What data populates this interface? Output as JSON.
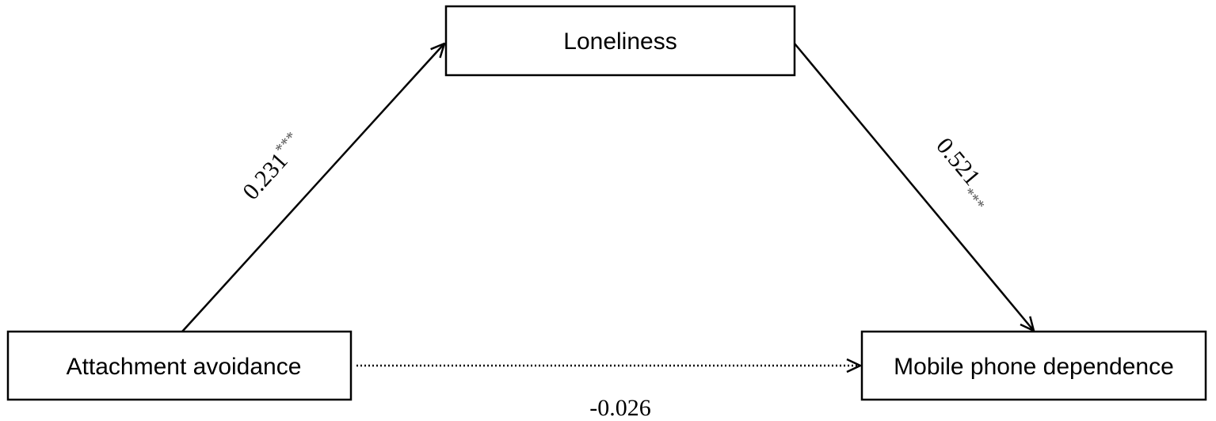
{
  "nodes": {
    "mediator": "Loneliness",
    "predictor": "Attachment avoidance",
    "outcome": "Mobile phone dependence"
  },
  "paths": {
    "a": {
      "coefficient": "0.231",
      "significance": "***"
    },
    "b": {
      "coefficient": "0.521",
      "significance": "***"
    },
    "c_prime": {
      "coefficient": "-0.026",
      "significance": "",
      "style": "dotted"
    }
  }
}
